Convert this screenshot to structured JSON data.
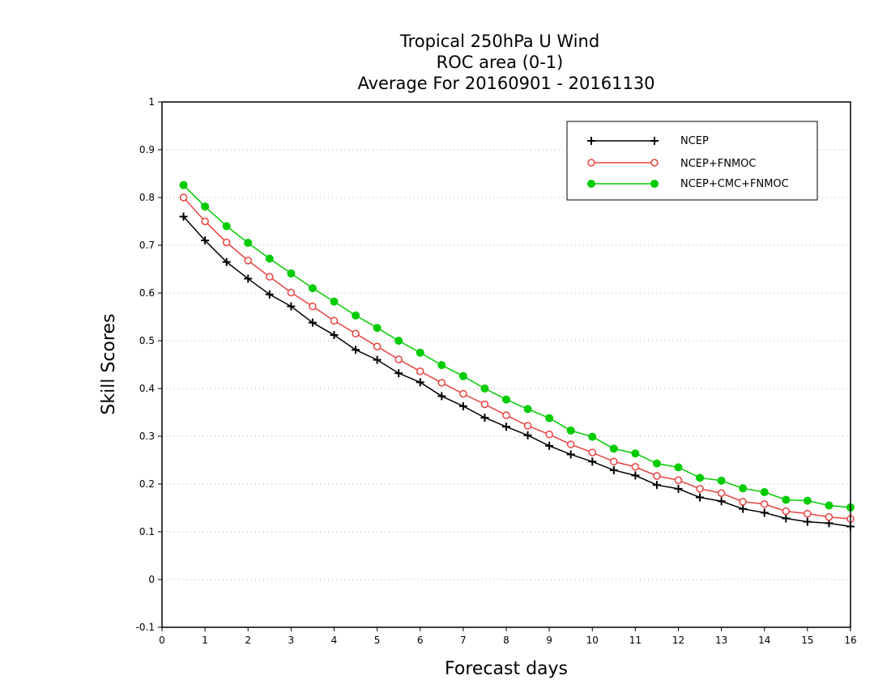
{
  "chart_data": {
    "type": "line",
    "title_lines": [
      "Tropical 250hPa U Wind",
      "ROC area (0-1)",
      "Average For 20160901 - 20161130"
    ],
    "xlabel": "Forecast days",
    "ylabel": "Skill Scores",
    "xlim": [
      0,
      16
    ],
    "ylim": [
      -0.1,
      1
    ],
    "x_ticks": [
      0,
      1,
      2,
      3,
      4,
      5,
      6,
      7,
      8,
      9,
      10,
      11,
      12,
      13,
      14,
      15,
      16
    ],
    "x_tick_labels": [
      "0",
      "1",
      "2",
      "3",
      "4",
      "5",
      "6",
      "7",
      "8",
      "9",
      "10",
      "11",
      "12",
      "13",
      "14",
      "15",
      "16"
    ],
    "y_ticks": [
      -0.1,
      0,
      0.1,
      0.2,
      0.3,
      0.4,
      0.5,
      0.6,
      0.7,
      0.8,
      0.9,
      1
    ],
    "y_tick_labels": [
      "-0.1",
      "0",
      "0.1",
      "0.2",
      "0.3",
      "0.4",
      "0.5",
      "0.6",
      "0.7",
      "0.8",
      "0.9",
      "1"
    ],
    "grid": "horizontal dotted",
    "legend_position": "top-right",
    "x": [
      0.5,
      1,
      1.5,
      2,
      2.5,
      3,
      3.5,
      4,
      4.5,
      5,
      5.5,
      6,
      6.5,
      7,
      7.5,
      8,
      8.5,
      9,
      9.5,
      10,
      10.5,
      11,
      11.5,
      12,
      12.5,
      13,
      13.5,
      14,
      14.5,
      15,
      15.5,
      16
    ],
    "series": [
      {
        "name": "NCEP",
        "color": "#000000",
        "marker": "plus",
        "values": [
          0.76,
          0.71,
          0.665,
          0.63,
          0.597,
          0.572,
          0.538,
          0.512,
          0.481,
          0.46,
          0.432,
          0.413,
          0.384,
          0.363,
          0.339,
          0.32,
          0.302,
          0.28,
          0.262,
          0.247,
          0.229,
          0.218,
          0.198,
          0.19,
          0.172,
          0.164,
          0.148,
          0.14,
          0.128,
          0.121,
          0.118,
          0.111
        ]
      },
      {
        "name": "NCEP+FNMOC",
        "color": "#e8423f",
        "marker": "open-circle",
        "values": [
          0.8,
          0.75,
          0.706,
          0.668,
          0.634,
          0.601,
          0.572,
          0.542,
          0.515,
          0.488,
          0.461,
          0.436,
          0.412,
          0.389,
          0.367,
          0.344,
          0.322,
          0.304,
          0.283,
          0.266,
          0.247,
          0.236,
          0.217,
          0.208,
          0.19,
          0.181,
          0.163,
          0.158,
          0.143,
          0.138,
          0.131,
          0.127
        ]
      },
      {
        "name": "NCEP+CMC+FNMOC",
        "color": "#00cc00",
        "marker": "filled-circle",
        "values": [
          0.826,
          0.781,
          0.74,
          0.705,
          0.672,
          0.641,
          0.61,
          0.582,
          0.553,
          0.527,
          0.5,
          0.475,
          0.449,
          0.426,
          0.4,
          0.377,
          0.357,
          0.338,
          0.312,
          0.299,
          0.274,
          0.264,
          0.243,
          0.235,
          0.213,
          0.207,
          0.191,
          0.183,
          0.167,
          0.165,
          0.155,
          0.151
        ]
      }
    ]
  }
}
